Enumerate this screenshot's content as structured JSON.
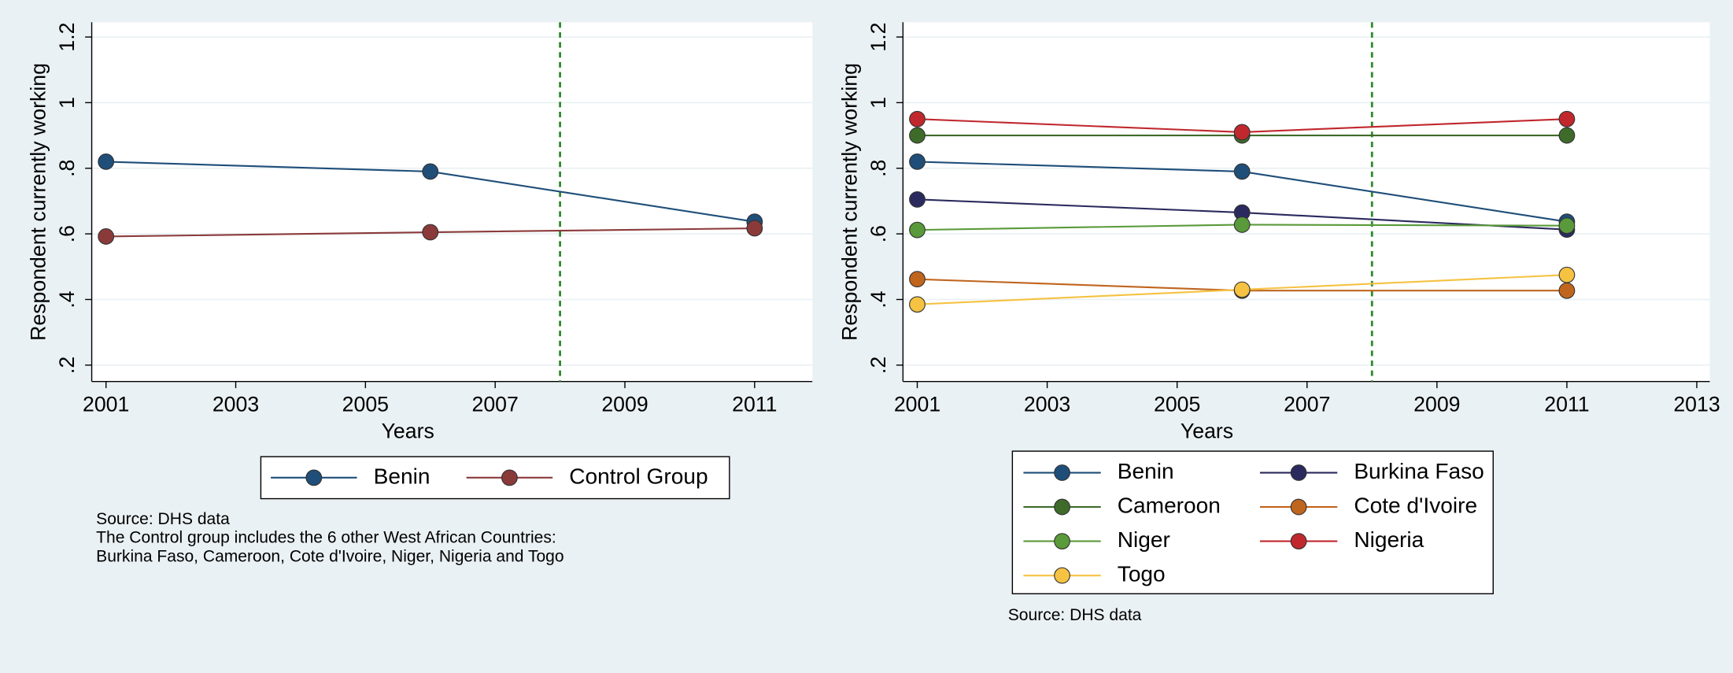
{
  "chart_data": [
    {
      "type": "line",
      "x_label": "Years",
      "y_label": "Respondent currently working",
      "xlim": [
        2000.78,
        2011.89
      ],
      "ylim": [
        0.15,
        1.245
      ],
      "xticks": [
        2001,
        2003,
        2005,
        2007,
        2009,
        2011
      ],
      "yticks": [
        {
          "value": 0.2,
          "label": ".2"
        },
        {
          "value": 0.4,
          "label": ".4"
        },
        {
          "value": 0.6,
          "label": ".6"
        },
        {
          "value": 0.8,
          "label": ".8"
        },
        1,
        1.2
      ],
      "grid": true,
      "legend_columns": 2,
      "reference_line": {
        "x": 2008,
        "color": "#2e8b2e",
        "style": "dashed"
      },
      "x": [
        2001,
        2006,
        2011
      ],
      "series": [
        {
          "name": "Benin",
          "color": "#1f4e79",
          "values": [
            0.82,
            0.79,
            0.637
          ]
        },
        {
          "name": "Control Group",
          "color": "#8b3a3a",
          "values": [
            0.592,
            0.605,
            0.617
          ]
        }
      ],
      "notes": [
        "Source:  DHS data",
        "The Control group includes the 6 other West African Countries:",
        "Burkina Faso, Cameroon, Cote d'Ivoire, Niger, Nigeria and Togo"
      ]
    },
    {
      "type": "line",
      "x_label": "Years",
      "y_label": "Respondent currently working",
      "xlim": [
        2000.78,
        2013.2
      ],
      "ylim": [
        0.15,
        1.245
      ],
      "xticks": [
        2001,
        2003,
        2005,
        2007,
        2009,
        2011,
        2013
      ],
      "yticks": [
        {
          "value": 0.2,
          "label": ".2"
        },
        {
          "value": 0.4,
          "label": ".4"
        },
        {
          "value": 0.6,
          "label": ".6"
        },
        {
          "value": 0.8,
          "label": ".8"
        },
        1,
        1.2
      ],
      "grid": true,
      "legend_columns": 2,
      "reference_line": {
        "x": 2008,
        "color": "#2e8b2e",
        "style": "dashed"
      },
      "x": [
        2001,
        2006,
        2011
      ],
      "series": [
        {
          "name": "Benin",
          "color": "#1f4e79",
          "values": [
            0.82,
            0.79,
            0.637
          ]
        },
        {
          "name": "Burkina Faso",
          "color": "#2a2a5e",
          "values": [
            0.705,
            0.665,
            0.613
          ]
        },
        {
          "name": "Cameroon",
          "color": "#3e6b2a",
          "values": [
            0.9,
            0.9,
            0.9
          ]
        },
        {
          "name": "Cote d'Ivoire",
          "color": "#c0651e",
          "values": [
            0.462,
            0.427,
            0.427
          ]
        },
        {
          "name": "Niger",
          "color": "#5a9a3a",
          "values": [
            0.612,
            0.628,
            0.625
          ]
        },
        {
          "name": "Nigeria",
          "color": "#c0282d",
          "values": [
            0.95,
            0.91,
            0.95
          ]
        },
        {
          "name": "Togo",
          "color": "#f5c242",
          "values": [
            0.385,
            0.43,
            0.475
          ]
        }
      ],
      "notes": [
        "Source:  DHS data"
      ]
    }
  ]
}
